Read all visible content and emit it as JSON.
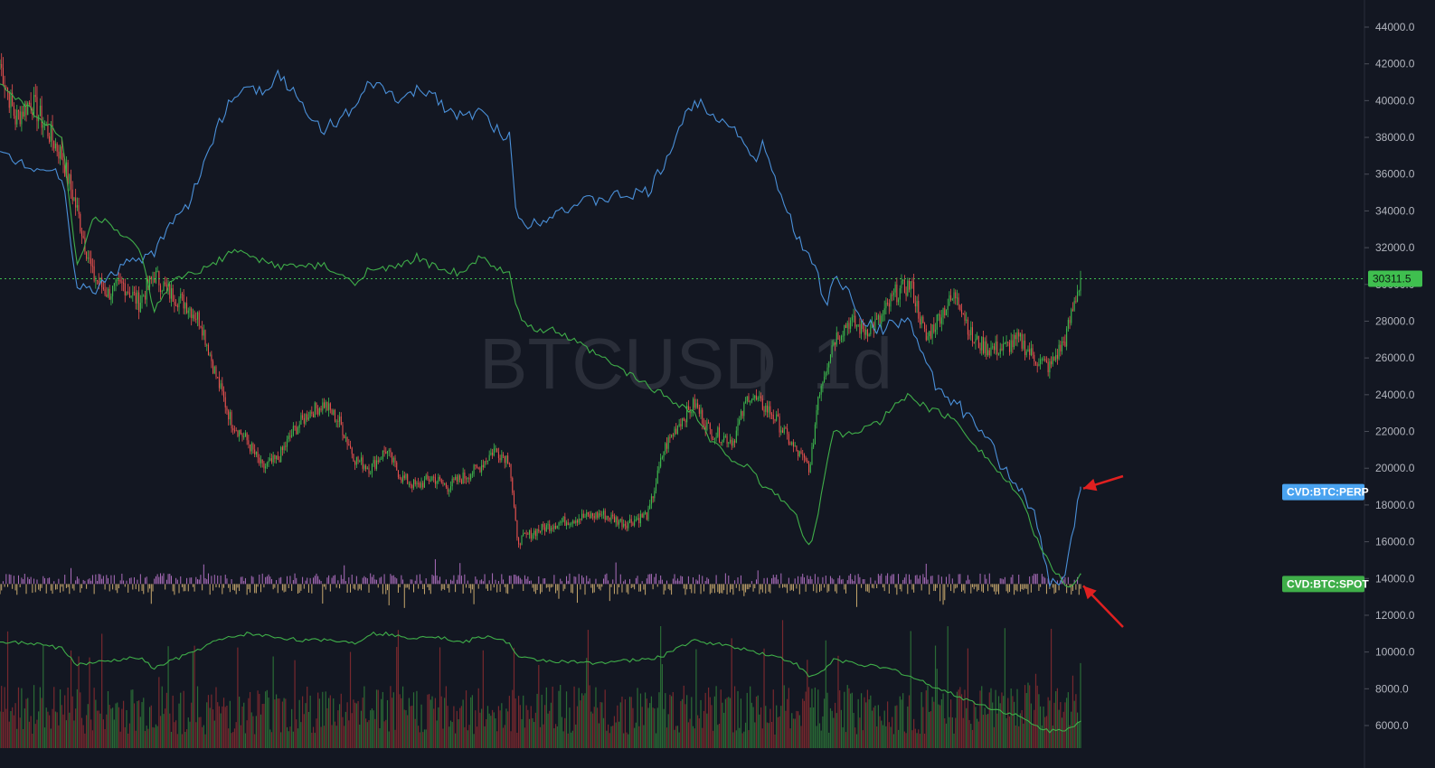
{
  "chart_data": {
    "type": "candlestick",
    "symbol_watermark": "BTCUSD",
    "interval_watermark": "1d",
    "separator": "|",
    "ylim": [
      5000,
      45000
    ],
    "y_ticks": [
      6000,
      8000,
      10000,
      12000,
      14000,
      16000,
      18000,
      20000,
      22000,
      24000,
      26000,
      28000,
      30000,
      32000,
      34000,
      36000,
      38000,
      40000,
      42000,
      44000
    ],
    "last_price": 30311.5,
    "last_price_label": "30311.5",
    "colors": {
      "up": "#26a69a",
      "up_bright": "#3fbf4f",
      "down": "#ef5350",
      "cvd_perp": "#4a90d9",
      "cvd_spot": "#3fae49",
      "delta_up": "#c77dd7",
      "delta_down": "#e8c27a",
      "annotation_arrow": "#e02020"
    },
    "price_anchors": [
      [
        0,
        42000
      ],
      [
        10,
        39000
      ],
      [
        20,
        40000
      ],
      [
        30,
        38500
      ],
      [
        40,
        37000
      ],
      [
        50,
        34000
      ],
      [
        60,
        30500
      ],
      [
        70,
        29500
      ],
      [
        80,
        30000
      ],
      [
        90,
        29000
      ],
      [
        100,
        30500
      ],
      [
        110,
        29500
      ],
      [
        120,
        29000
      ],
      [
        130,
        28000
      ],
      [
        140,
        25000
      ],
      [
        150,
        22500
      ],
      [
        160,
        21500
      ],
      [
        170,
        20000
      ],
      [
        180,
        20500
      ],
      [
        190,
        22000
      ],
      [
        200,
        23000
      ],
      [
        210,
        23500
      ],
      [
        220,
        22500
      ],
      [
        230,
        20500
      ],
      [
        240,
        20000
      ],
      [
        250,
        21000
      ],
      [
        260,
        19500
      ],
      [
        270,
        19000
      ],
      [
        280,
        19500
      ],
      [
        290,
        19000
      ],
      [
        300,
        19500
      ],
      [
        310,
        20000
      ],
      [
        320,
        21000
      ],
      [
        330,
        20500
      ],
      [
        335,
        16000
      ],
      [
        345,
        16500
      ],
      [
        360,
        17000
      ],
      [
        375,
        17300
      ],
      [
        390,
        17500
      ],
      [
        405,
        17000
      ],
      [
        420,
        17500
      ],
      [
        430,
        21000
      ],
      [
        440,
        22500
      ],
      [
        450,
        23500
      ],
      [
        460,
        22000
      ],
      [
        475,
        21500
      ],
      [
        485,
        24000
      ],
      [
        500,
        23000
      ],
      [
        515,
        21000
      ],
      [
        525,
        20000
      ],
      [
        530,
        24000
      ],
      [
        540,
        27000
      ],
      [
        550,
        28000
      ],
      [
        560,
        27500
      ],
      [
        570,
        28000
      ],
      [
        580,
        29500
      ],
      [
        590,
        30000
      ],
      [
        600,
        27000
      ],
      [
        610,
        28500
      ],
      [
        620,
        29500
      ],
      [
        630,
        27000
      ],
      [
        640,
        26500
      ],
      [
        650,
        26500
      ],
      [
        660,
        27000
      ],
      [
        670,
        26000
      ],
      [
        680,
        25500
      ],
      [
        690,
        27000
      ],
      [
        700,
        30311.5
      ]
    ],
    "cvd_perp_anchors": [
      [
        0,
        37000
      ],
      [
        20,
        36500
      ],
      [
        40,
        36000
      ],
      [
        50,
        30000
      ],
      [
        60,
        29500
      ],
      [
        70,
        30500
      ],
      [
        80,
        31000
      ],
      [
        90,
        31500
      ],
      [
        100,
        31500
      ],
      [
        110,
        33500
      ],
      [
        120,
        34000
      ],
      [
        130,
        36000
      ],
      [
        140,
        38500
      ],
      [
        150,
        40000
      ],
      [
        160,
        41000
      ],
      [
        170,
        40500
      ],
      [
        180,
        41500
      ],
      [
        190,
        40500
      ],
      [
        200,
        39000
      ],
      [
        210,
        38500
      ],
      [
        220,
        39000
      ],
      [
        230,
        39500
      ],
      [
        240,
        41000
      ],
      [
        250,
        40500
      ],
      [
        260,
        40000
      ],
      [
        270,
        40500
      ],
      [
        280,
        40500
      ],
      [
        290,
        39500
      ],
      [
        300,
        39000
      ],
      [
        310,
        39500
      ],
      [
        320,
        38500
      ],
      [
        330,
        38000
      ],
      [
        335,
        33500
      ],
      [
        345,
        33300
      ],
      [
        360,
        34000
      ],
      [
        380,
        34500
      ],
      [
        400,
        34800
      ],
      [
        420,
        35000
      ],
      [
        430,
        36500
      ],
      [
        440,
        38500
      ],
      [
        450,
        40000
      ],
      [
        460,
        39500
      ],
      [
        475,
        38500
      ],
      [
        485,
        37500
      ],
      [
        490,
        36500
      ],
      [
        495,
        37800
      ],
      [
        500,
        36000
      ],
      [
        510,
        34000
      ],
      [
        520,
        32000
      ],
      [
        530,
        30500
      ],
      [
        535,
        28500
      ],
      [
        540,
        30500
      ],
      [
        550,
        29500
      ],
      [
        560,
        28000
      ],
      [
        570,
        27500
      ],
      [
        580,
        28000
      ],
      [
        590,
        28000
      ],
      [
        600,
        25500
      ],
      [
        610,
        24000
      ],
      [
        620,
        23500
      ],
      [
        630,
        22500
      ],
      [
        640,
        21500
      ],
      [
        650,
        20000
      ],
      [
        660,
        19000
      ],
      [
        670,
        17500
      ],
      [
        680,
        13700
      ],
      [
        690,
        14000
      ],
      [
        700,
        19000
      ]
    ],
    "cvd_spot_anchors": [
      [
        0,
        41000
      ],
      [
        20,
        39500
      ],
      [
        40,
        38000
      ],
      [
        50,
        31000
      ],
      [
        60,
        33500
      ],
      [
        70,
        33500
      ],
      [
        80,
        32500
      ],
      [
        90,
        32000
      ],
      [
        100,
        28500
      ],
      [
        110,
        30000
      ],
      [
        120,
        30500
      ],
      [
        130,
        30700
      ],
      [
        140,
        31200
      ],
      [
        150,
        31800
      ],
      [
        160,
        31600
      ],
      [
        170,
        31300
      ],
      [
        180,
        31000
      ],
      [
        190,
        31000
      ],
      [
        200,
        31000
      ],
      [
        210,
        31000
      ],
      [
        220,
        30500
      ],
      [
        230,
        30000
      ],
      [
        240,
        31000
      ],
      [
        250,
        30800
      ],
      [
        260,
        31000
      ],
      [
        270,
        31500
      ],
      [
        280,
        31000
      ],
      [
        290,
        30800
      ],
      [
        300,
        30500
      ],
      [
        310,
        31500
      ],
      [
        320,
        31000
      ],
      [
        330,
        30500
      ],
      [
        335,
        28500
      ],
      [
        345,
        27500
      ],
      [
        360,
        27500
      ],
      [
        380,
        26500
      ],
      [
        400,
        25500
      ],
      [
        420,
        24500
      ],
      [
        440,
        23500
      ],
      [
        450,
        23000
      ],
      [
        460,
        21500
      ],
      [
        475,
        20500
      ],
      [
        485,
        20000
      ],
      [
        495,
        19000
      ],
      [
        505,
        18500
      ],
      [
        515,
        17500
      ],
      [
        520,
        16500
      ],
      [
        525,
        15800
      ],
      [
        530,
        17500
      ],
      [
        535,
        20000
      ],
      [
        540,
        22000
      ],
      [
        550,
        21800
      ],
      [
        560,
        22200
      ],
      [
        570,
        22500
      ],
      [
        580,
        23500
      ],
      [
        590,
        24000
      ],
      [
        600,
        23300
      ],
      [
        610,
        23000
      ],
      [
        620,
        22500
      ],
      [
        630,
        21500
      ],
      [
        640,
        20500
      ],
      [
        650,
        19500
      ],
      [
        660,
        18500
      ],
      [
        670,
        16500
      ],
      [
        680,
        14700
      ],
      [
        690,
        13800
      ],
      [
        695,
        13500
      ],
      [
        700,
        14200
      ]
    ],
    "oi_anchors": [
      [
        0,
        10500
      ],
      [
        20,
        10500
      ],
      [
        40,
        10200
      ],
      [
        50,
        9300
      ],
      [
        60,
        9400
      ],
      [
        70,
        9500
      ],
      [
        80,
        9600
      ],
      [
        90,
        9700
      ],
      [
        100,
        9100
      ],
      [
        110,
        9500
      ],
      [
        120,
        9800
      ],
      [
        130,
        10200
      ],
      [
        140,
        10600
      ],
      [
        150,
        10800
      ],
      [
        160,
        11000
      ],
      [
        170,
        10900
      ],
      [
        180,
        10800
      ],
      [
        190,
        10700
      ],
      [
        200,
        10600
      ],
      [
        210,
        10700
      ],
      [
        220,
        10600
      ],
      [
        230,
        10500
      ],
      [
        240,
        11000
      ],
      [
        250,
        11000
      ],
      [
        260,
        10800
      ],
      [
        270,
        10800
      ],
      [
        280,
        10900
      ],
      [
        290,
        10700
      ],
      [
        300,
        10500
      ],
      [
        310,
        10800
      ],
      [
        320,
        10800
      ],
      [
        330,
        10500
      ],
      [
        335,
        9700
      ],
      [
        345,
        9600
      ],
      [
        360,
        9500
      ],
      [
        380,
        9400
      ],
      [
        400,
        9500
      ],
      [
        420,
        9600
      ],
      [
        430,
        9800
      ],
      [
        440,
        10300
      ],
      [
        450,
        10600
      ],
      [
        460,
        10500
      ],
      [
        475,
        10300
      ],
      [
        485,
        10100
      ],
      [
        495,
        9900
      ],
      [
        505,
        9700
      ],
      [
        515,
        9400
      ],
      [
        525,
        8600
      ],
      [
        535,
        9100
      ],
      [
        540,
        9600
      ],
      [
        560,
        9300
      ],
      [
        580,
        9000
      ],
      [
        600,
        8300
      ],
      [
        620,
        7600
      ],
      [
        640,
        7000
      ],
      [
        660,
        6500
      ],
      [
        670,
        6000
      ],
      [
        680,
        5700
      ],
      [
        690,
        5800
      ],
      [
        700,
        6200
      ]
    ],
    "n_bars": 701,
    "cvd_perp_label": "CVD:BTC:PERP",
    "cvd_perp_value": 18700,
    "cvd_spot_label": "CVD:BTC:SPOT",
    "cvd_spot_value": 13700,
    "delta_baseline": 13700,
    "annotations": [
      {
        "type": "arrow",
        "points_to": "cvd_perp_end",
        "value": 18700
      },
      {
        "type": "arrow",
        "points_to": "cvd_spot_end",
        "value": 13700
      }
    ],
    "grid": false
  }
}
